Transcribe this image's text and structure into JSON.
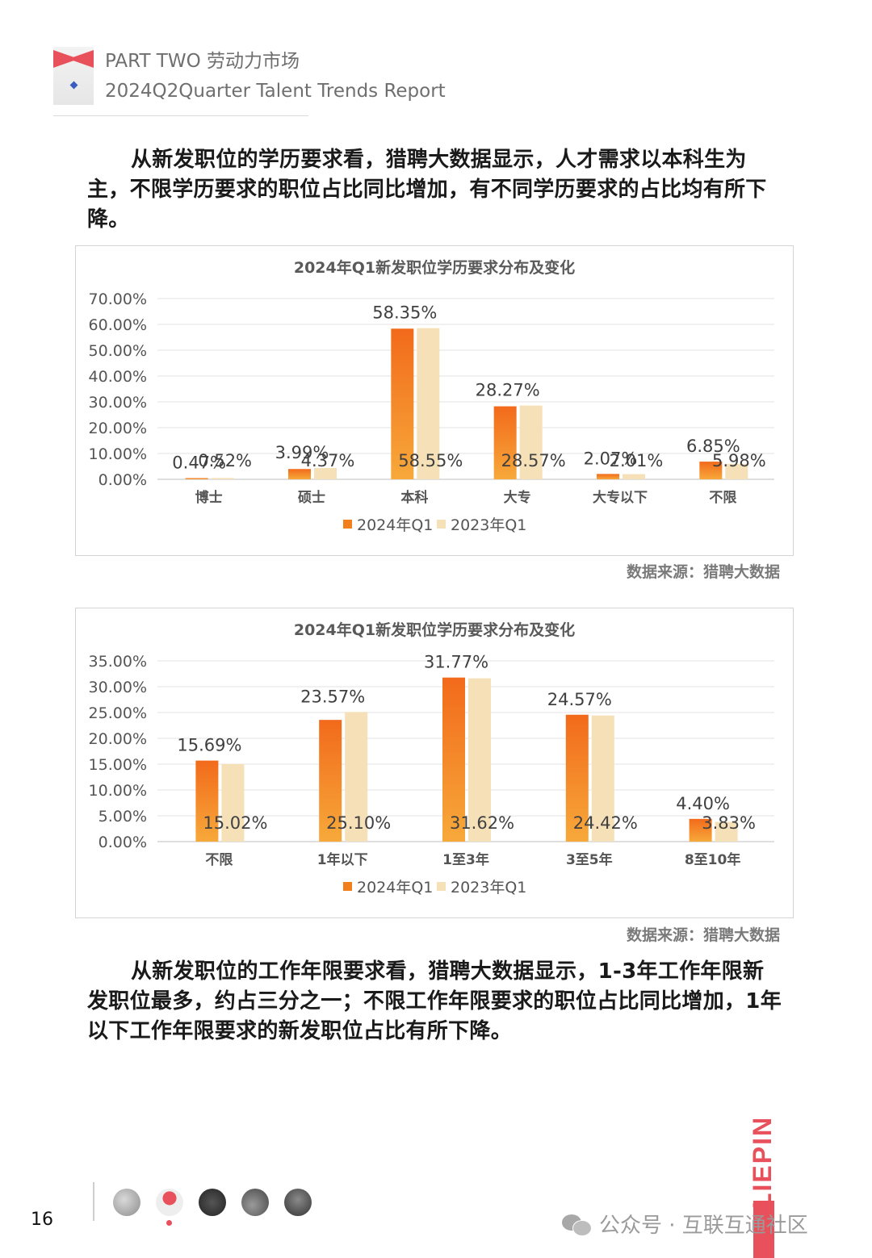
{
  "header": {
    "line1": "PART TWO 劳动力市场",
    "line2": "2024Q2Quarter Talent Trends Report"
  },
  "paragraph1": "从新发职位的学历要求看，猎聘大数据显示，人才需求以本科生为主，不限学历要求的职位占比同比增加，有不同学历要求的占比均有所下降。",
  "paragraph2": "从新发职位的工作年限要求看，猎聘大数据显示，1-3年工作年限新发职位最多，约占三分之一；不限工作年限要求的职位占比同比增加，1年以下工作年限要求的新发职位占比有所下降。",
  "source1": "数据来源：猎聘大数据",
  "source2": "数据来源：猎聘大数据",
  "page_number": "16",
  "brand": "LIEPIN",
  "watermark": "公众号 · 互联互通社区",
  "colors": {
    "series_2024": "#f07f1c",
    "series_2023": "#f5e0b8",
    "brand": "#e8505b"
  },
  "chart_data": [
    {
      "type": "bar",
      "title": "2024年Q1新发职位学历要求分布及变化",
      "categories": [
        "博士",
        "硕士",
        "本科",
        "大专",
        "大专以下",
        "不限"
      ],
      "series": [
        {
          "name": "2024年Q1",
          "values": [
            0.47,
            3.99,
            58.35,
            28.27,
            2.07,
            6.85
          ],
          "labels": [
            "0.47%",
            "3.99%",
            "58.35%",
            "28.27%",
            "2.07%",
            "6.85%"
          ]
        },
        {
          "name": "2023年Q1",
          "values": [
            0.52,
            4.37,
            58.55,
            28.57,
            2.01,
            5.98
          ],
          "labels": [
            "0.52%",
            "4.37%",
            "58.55%",
            "28.57%",
            "2.01%",
            "5.98%"
          ]
        }
      ],
      "yticks": [
        "0.00%",
        "10.00%",
        "20.00%",
        "30.00%",
        "40.00%",
        "50.00%",
        "60.00%",
        "70.00%"
      ],
      "ylim": [
        0,
        70
      ],
      "grid": true,
      "legend": "bottom"
    },
    {
      "type": "bar",
      "title": "2024年Q1新发职位学历要求分布及变化",
      "categories": [
        "不限",
        "1年以下",
        "1至3年",
        "3至5年",
        "8至10年"
      ],
      "series": [
        {
          "name": "2024年Q1",
          "values": [
            15.69,
            23.57,
            31.77,
            24.57,
            4.4
          ],
          "labels": [
            "15.69%",
            "23.57%",
            "31.77%",
            "24.57%",
            "4.40%"
          ]
        },
        {
          "name": "2023年Q1",
          "values": [
            15.02,
            25.1,
            31.62,
            24.42,
            3.83
          ],
          "labels": [
            "15.02%",
            "25.10%",
            "31.62%",
            "24.42%",
            "3.83%"
          ]
        }
      ],
      "yticks": [
        "0.00%",
        "5.00%",
        "10.00%",
        "15.00%",
        "20.00%",
        "25.00%",
        "30.00%",
        "35.00%"
      ],
      "ylim": [
        0,
        35
      ],
      "grid": true,
      "legend": "bottom"
    }
  ]
}
